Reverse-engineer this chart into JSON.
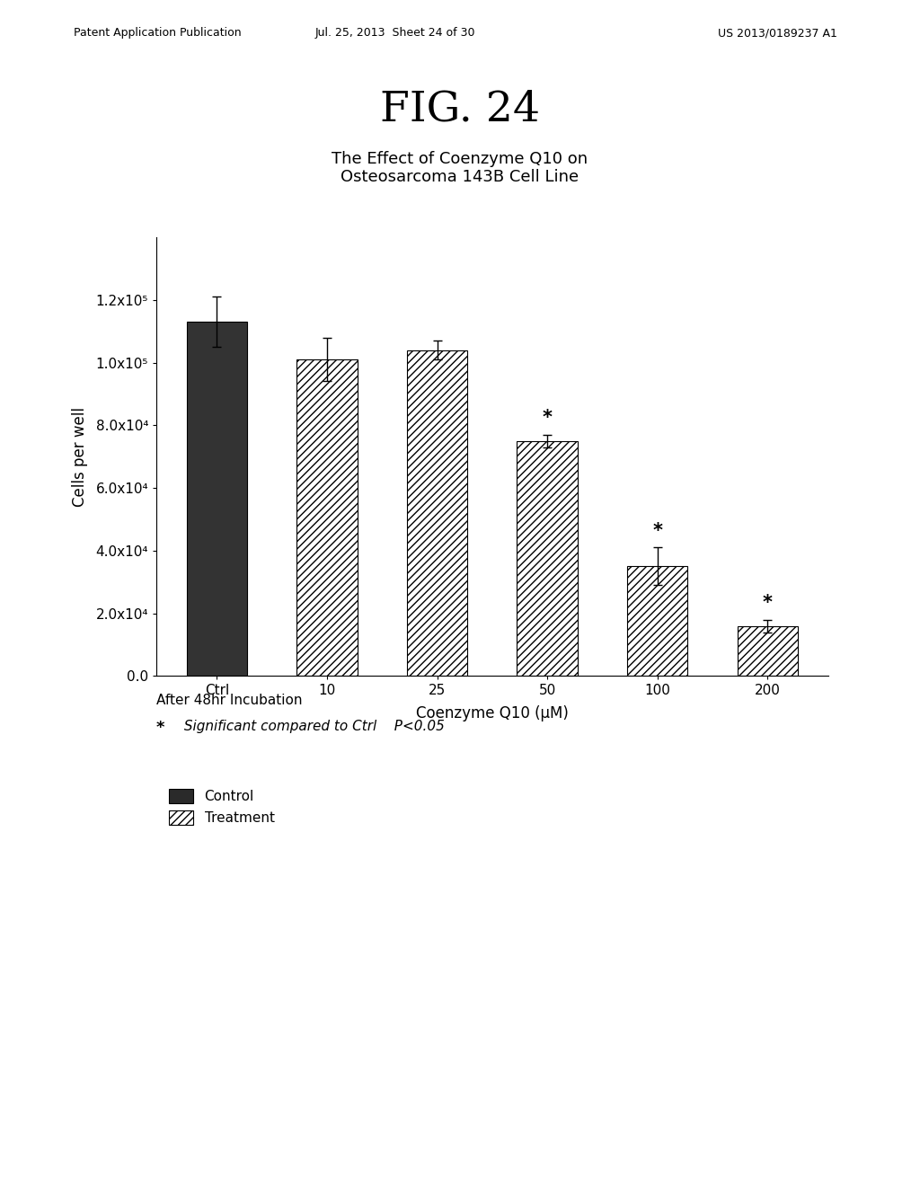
{
  "fig_title": "FIG. 24",
  "subtitle": "The Effect of Coenzyme Q10 on\nOsteosarcoma 143B Cell Line",
  "xlabel": "Coenzyme Q10 (μM)",
  "ylabel": "Cells per well",
  "categories": [
    "Ctrl",
    "10",
    "25",
    "50",
    "100",
    "200"
  ],
  "values": [
    113000,
    101000,
    104000,
    75000,
    35000,
    16000
  ],
  "errors": [
    8000,
    7000,
    3000,
    2000,
    6000,
    2000
  ],
  "significant": [
    false,
    false,
    false,
    true,
    true,
    true
  ],
  "bar_colors": [
    "#333333",
    "white",
    "white",
    "white",
    "white",
    "white"
  ],
  "bar_hatches": [
    null,
    "////",
    "////",
    "////",
    "////",
    "////"
  ],
  "ylim": [
    0,
    140000
  ],
  "yticks": [
    0,
    20000,
    40000,
    60000,
    80000,
    100000,
    120000
  ],
  "ytick_labels": [
    "0.0",
    "2.0x10⁴",
    "4.0x10⁴",
    "6.0x10⁴",
    "8.0x10⁴",
    "1.0x10⁵",
    "1.2x10⁵"
  ],
  "annotation_line1": "After 48hr Incubation",
  "annotation_line2_star": "*",
  "annotation_line2_text": " Significant compared to Ctrl    P<0.05",
  "legend_control": "Control",
  "legend_treatment": "Treatment",
  "patent_line1": "Patent Application Publication",
  "patent_line2": "Jul. 25, 2013  Sheet 24 of 30",
  "patent_line3": "US 2013/0189237 A1",
  "background_color": "#ffffff",
  "bar_width": 0.55,
  "fontsize_title_big": 34,
  "fontsize_subtitle": 13,
  "fontsize_axis_label": 12,
  "fontsize_tick": 11,
  "fontsize_annot": 11,
  "fontsize_patent": 9
}
